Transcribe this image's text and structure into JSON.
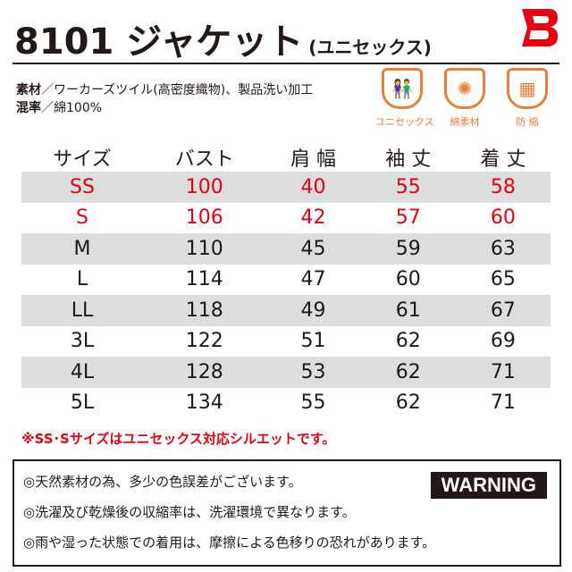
{
  "title": {
    "main": "8101 ジャケット",
    "sub": "(ユニセックス)"
  },
  "brand_color": "#e60012",
  "specs": [
    {
      "key": "素材",
      "value": "／ワーカーズツイル(高密度織物)、製品洗い加工"
    },
    {
      "key": "混率",
      "value": "／綿100%"
    }
  ],
  "icons": [
    {
      "name": "unisex-icon",
      "label": "ユニセックス",
      "glyph": "👫"
    },
    {
      "name": "cotton-icon",
      "label": "綿素材",
      "glyph": "✺"
    },
    {
      "name": "shrink-proof-icon",
      "label": "防 縮",
      "glyph": "▦"
    }
  ],
  "table": {
    "headers": [
      "サイズ",
      "バスト",
      "肩 幅",
      "袖 丈",
      "着 丈"
    ],
    "rows": [
      [
        "SS",
        "100",
        "40",
        "55",
        "58"
      ],
      [
        "S",
        "106",
        "42",
        "57",
        "60"
      ],
      [
        "M",
        "110",
        "45",
        "59",
        "63"
      ],
      [
        "L",
        "114",
        "47",
        "60",
        "65"
      ],
      [
        "LL",
        "118",
        "49",
        "61",
        "67"
      ],
      [
        "3L",
        "122",
        "51",
        "62",
        "69"
      ],
      [
        "4L",
        "128",
        "53",
        "62",
        "71"
      ],
      [
        "5L",
        "134",
        "55",
        "62",
        "71"
      ]
    ]
  },
  "note": "※SS･Sサイズはユニセックス対応シルエットです。",
  "warning": {
    "badge": "WARNING",
    "lines": [
      "◎天然素材の為、多少の色誤差がございます。",
      "◎洗濯及び乾燥後の収縮率は、洗濯環境で異なります。",
      "◎雨や湿った状態での着用は、摩擦による色移りの恐れがあります。"
    ]
  }
}
